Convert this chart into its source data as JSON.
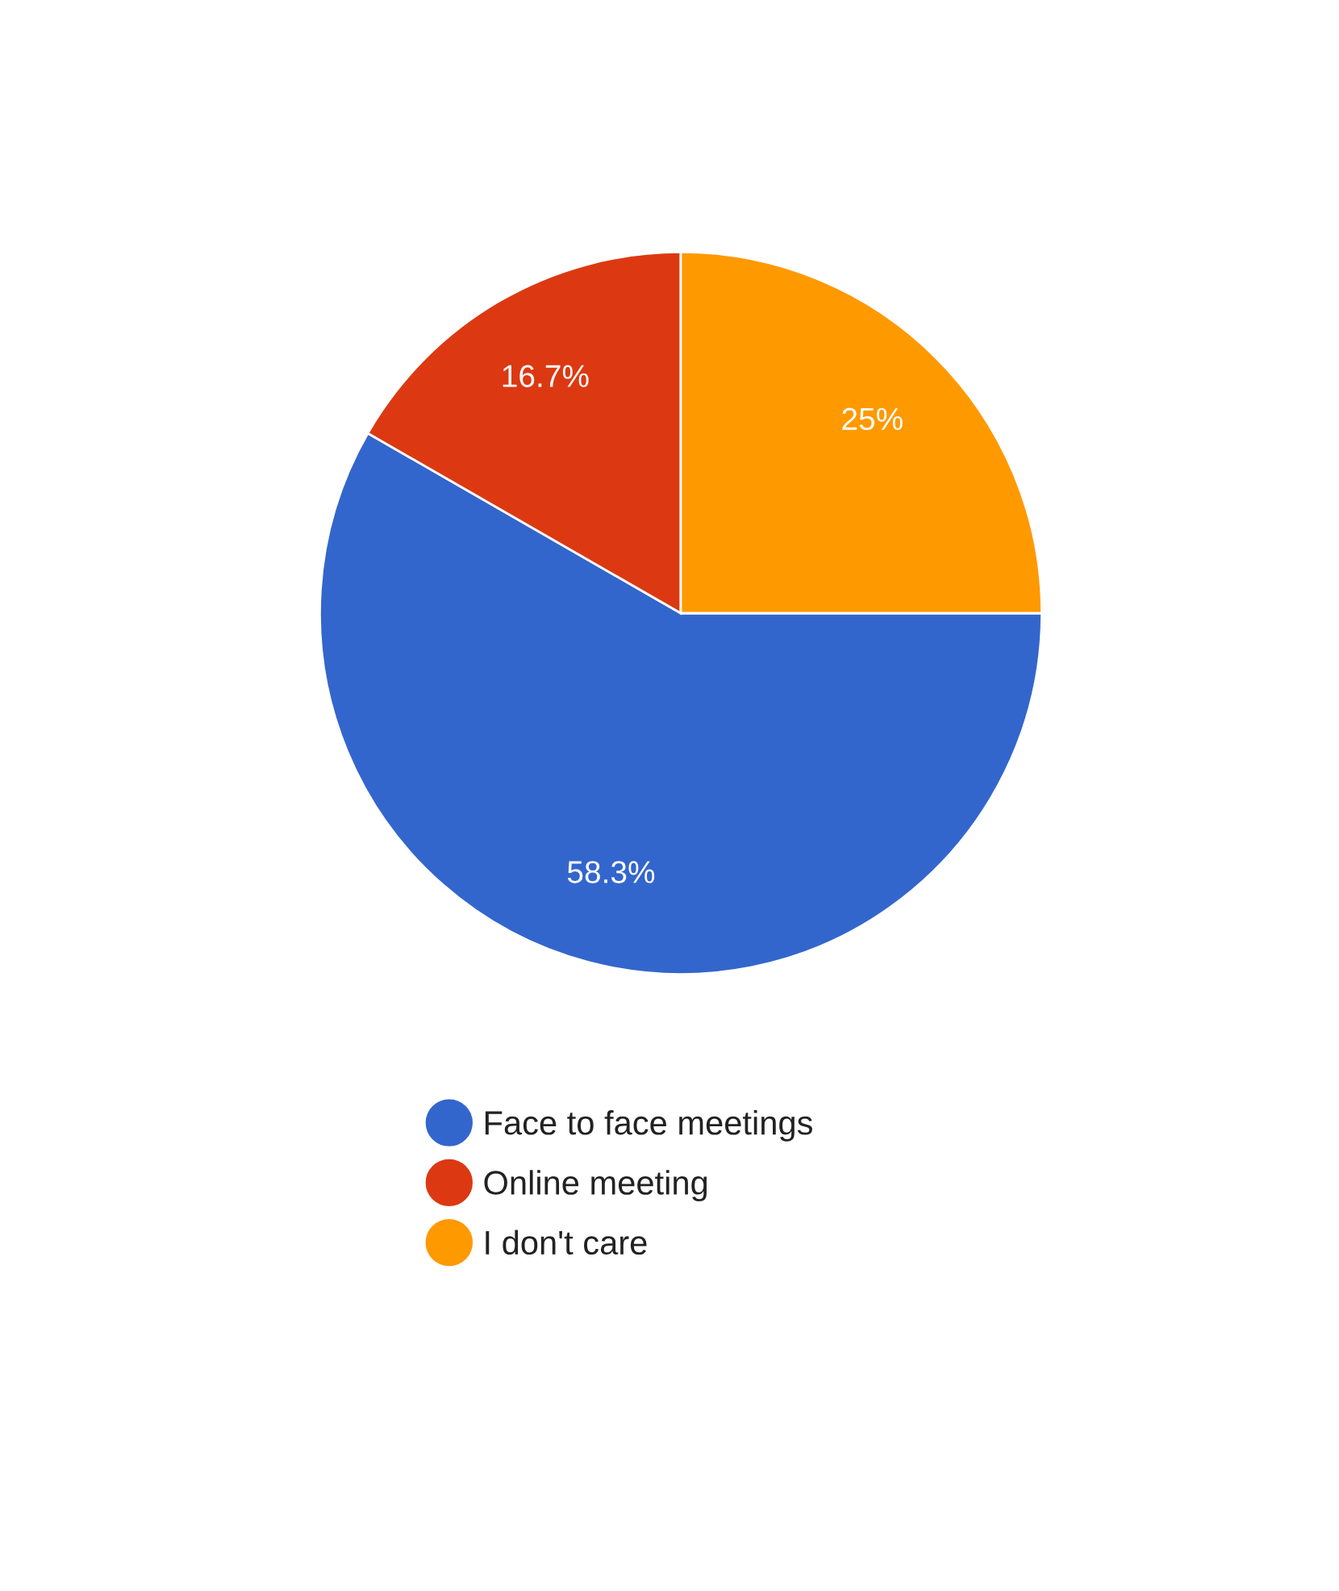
{
  "chart_data": {
    "type": "pie",
    "categories": [
      "Face to face meetings",
      "Online meeting",
      "I don't care"
    ],
    "values": [
      58.3,
      16.7,
      25
    ],
    "colors": [
      "#3366cc",
      "#dc3912",
      "#ff9900"
    ],
    "value_labels": [
      "58.3%",
      "16.7%",
      "25%"
    ],
    "legend": "bottom"
  }
}
